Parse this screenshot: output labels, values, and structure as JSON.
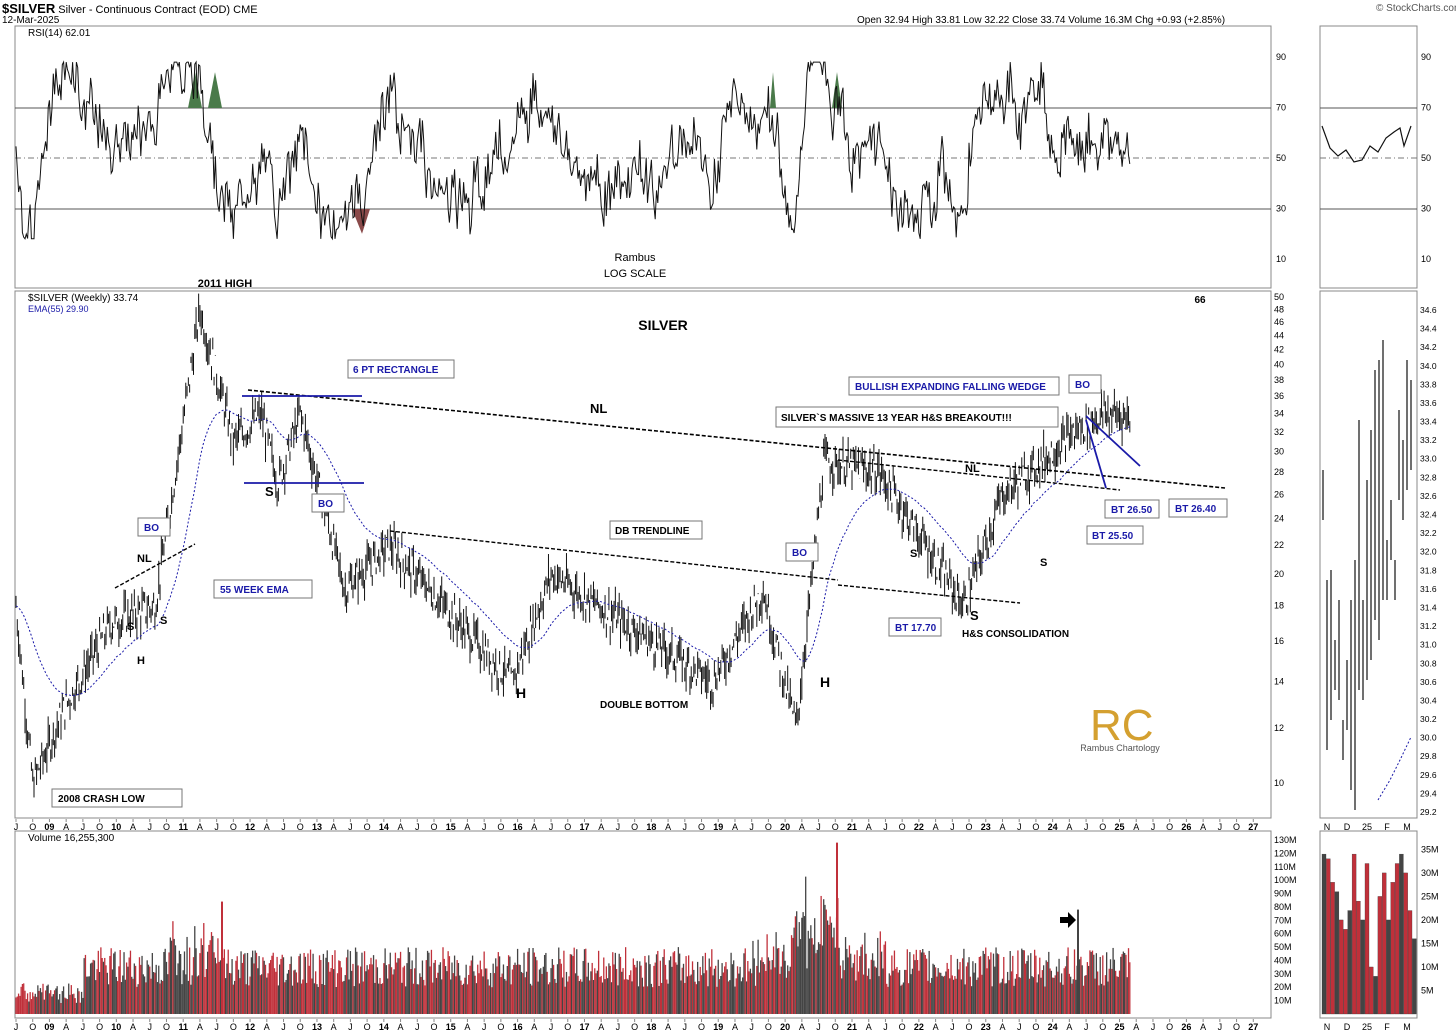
{
  "header": {
    "symbol": "$SILVER",
    "name": "Silver - Continuous Contract (EOD)",
    "exchange": "CME",
    "date": "12-Mar-2025",
    "quote": "Open 32.94  High 33.81  Low 32.22  Close 33.74  Volume 16.3M  Chg +0.93 (+2.85%)",
    "credit": "© StockCharts.com"
  },
  "rsi_panel": {
    "label": "RSI(14) 62.01",
    "ticks": [
      "90",
      "70",
      "50",
      "30",
      "10"
    ],
    "center_text": [
      "Rambus",
      "LOG SCALE"
    ]
  },
  "price_panel": {
    "label": "$SILVER (Weekly) 33.74",
    "ema_label": "EMA(55) 29.90",
    "title": "SILVER",
    "corner_num": "66",
    "ticks": [
      "50",
      "48",
      "46",
      "44",
      "42",
      "40",
      "38",
      "36",
      "34",
      "32",
      "30",
      "28",
      "26",
      "24",
      "22",
      "20",
      "18",
      "16",
      "14",
      "12",
      "10"
    ],
    "right_ticks": [
      "34.6",
      "34.4",
      "34.2",
      "34.0",
      "33.8",
      "33.6",
      "33.4",
      "33.2",
      "33.0",
      "32.8",
      "32.6",
      "32.4",
      "32.2",
      "32.0",
      "31.8",
      "31.6",
      "31.4",
      "31.2",
      "31.0",
      "30.8",
      "30.6",
      "30.4",
      "30.2",
      "30.0",
      "29.8",
      "29.6",
      "29.4",
      "29.2"
    ]
  },
  "volume_panel": {
    "label": "Volume 16,255,300",
    "ticks": [
      "130M",
      "120M",
      "110M",
      "100M",
      "90M",
      "80M",
      "70M",
      "60M",
      "50M",
      "40M",
      "30M",
      "20M",
      "10M"
    ],
    "right_ticks": [
      "35M",
      "30M",
      "25M",
      "20M",
      "15M",
      "10M",
      "5M"
    ]
  },
  "x_axis": {
    "labels": [
      "J",
      "O",
      "09",
      "A",
      "J",
      "O",
      "10",
      "A",
      "J",
      "O",
      "11",
      "A",
      "J",
      "O",
      "12",
      "A",
      "J",
      "O",
      "13",
      "A",
      "J",
      "O",
      "14",
      "A",
      "J",
      "O",
      "15",
      "A",
      "J",
      "O",
      "16",
      "A",
      "J",
      "O",
      "17",
      "A",
      "J",
      "O",
      "18",
      "A",
      "J",
      "O",
      "19",
      "A",
      "J",
      "O",
      "20",
      "A",
      "J",
      "O",
      "21",
      "A",
      "J",
      "O",
      "22",
      "A",
      "J",
      "O",
      "23",
      "A",
      "J",
      "O",
      "24",
      "A",
      "J",
      "O",
      "25",
      "A",
      "J",
      "O",
      "26",
      "A",
      "J",
      "O",
      "27"
    ],
    "right_labels": [
      "N",
      "D",
      "25",
      "F",
      "M"
    ]
  },
  "annotations": {
    "high_2011": "2011 HIGH",
    "crash_low": "2008 CRASH LOW",
    "bo1": "BO",
    "nl1": "NL",
    "s1": "S",
    "s2": "S",
    "h1": "H",
    "ema55": "55 WEEK EMA",
    "rect": "6 PT RECTANGLE",
    "rect_s": "S",
    "bo2": "BO",
    "nl_main": "NL",
    "db_trend": "DB TRENDLINE",
    "h_db": "H",
    "double_bottom": "DOUBLE BOTTOM",
    "bo3": "BO",
    "h2": "H",
    "breakout": "SILVER`S MASSIVE 13 YEAR H&S BREAKOUT!!!",
    "wedge": "BULLISH EXPANDING FALLING WEDGE",
    "bo4": "BO",
    "nl2": "NL",
    "s3": "S",
    "s4": "S",
    "s5": "S",
    "bt1770": "BT 17.70",
    "hs_consol": "H&S CONSOLIDATION",
    "bt2650": "BT 26.50",
    "bt2550": "BT 25.50",
    "bt2640": "BT 26.40",
    "logo_mark": "RC",
    "logo_text": "Rambus Chartology"
  },
  "colors": {
    "annotation_blue": "#1a1aa8",
    "up_volume": "#444444",
    "down_volume": "#c0303a",
    "rsi_over": "#4a7a4a",
    "rsi_under": "#8a4a4a",
    "logo_gold": "#d4a030"
  },
  "chart_data": {
    "type": "line",
    "title": "SILVER",
    "scale": "log",
    "ylim": [
      9,
      50
    ],
    "approximate_weekly_close_path": [
      {
        "x": "2008-07",
        "y": 18
      },
      {
        "x": "2008-10",
        "y": 10
      },
      {
        "x": "2009-04",
        "y": 13
      },
      {
        "x": "2009-12",
        "y": 17
      },
      {
        "x": "2010-08",
        "y": 18
      },
      {
        "x": "2011-04",
        "y": 48
      },
      {
        "x": "2011-10",
        "y": 31
      },
      {
        "x": "2012-03",
        "y": 34
      },
      {
        "x": "2012-06",
        "y": 27
      },
      {
        "x": "2012-10",
        "y": 34
      },
      {
        "x": "2013-06",
        "y": 19
      },
      {
        "x": "2014-02",
        "y": 22
      },
      {
        "x": "2015-12",
        "y": 14
      },
      {
        "x": "2016-07",
        "y": 20
      },
      {
        "x": "2018-12",
        "y": 14
      },
      {
        "x": "2019-09",
        "y": 19
      },
      {
        "x": "2020-03",
        "y": 12
      },
      {
        "x": "2020-08",
        "y": 29
      },
      {
        "x": "2021-06",
        "y": 28
      },
      {
        "x": "2022-09",
        "y": 18
      },
      {
        "x": "2023-04",
        "y": 26
      },
      {
        "x": "2024-05",
        "y": 32
      },
      {
        "x": "2024-10",
        "y": 34
      },
      {
        "x": "2025-03",
        "y": 33.74
      }
    ],
    "rsi_range": [
      0,
      100
    ],
    "volume_range_millions": [
      0,
      130
    ]
  }
}
